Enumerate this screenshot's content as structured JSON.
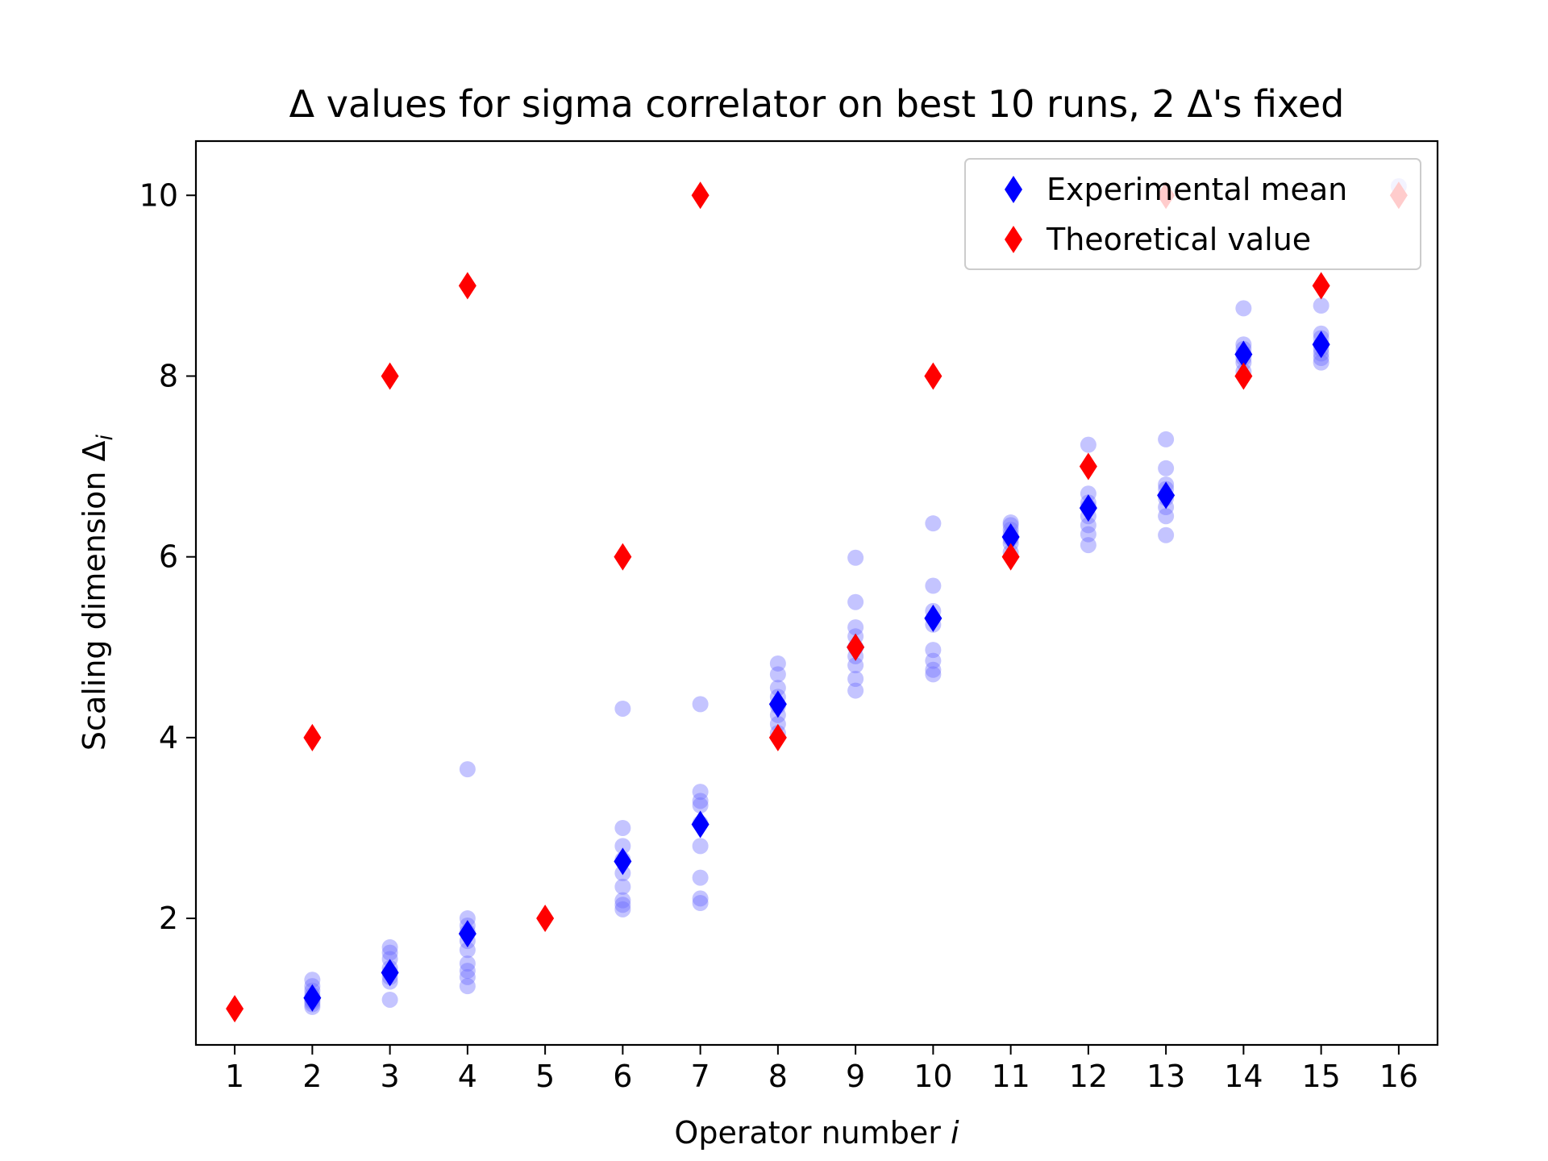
{
  "chart_data": {
    "type": "scatter",
    "title": "Δ values for sigma correlator on best 10 runs, 2 Δ's fixed",
    "xlabel": "Operator number",
    "xlabel_var": "i",
    "ylabel": "Scaling dimension Δ",
    "ylabel_sub": "i",
    "xlim": [
      0.5,
      16.5
    ],
    "ylim": [
      0.6,
      10.6
    ],
    "x_ticks": [
      1,
      2,
      3,
      4,
      5,
      6,
      7,
      8,
      9,
      10,
      11,
      12,
      13,
      14,
      15,
      16
    ],
    "y_ticks": [
      2,
      4,
      6,
      8,
      10
    ],
    "grid": false,
    "legend_placement": "top-right",
    "colors": {
      "experimental_mean": "#0000ff",
      "theoretical_value": "#ff0000",
      "runs": "#6b6bff"
    },
    "runs": [
      {
        "x": 2,
        "values": [
          1.02,
          1.05,
          1.08,
          1.1,
          1.12,
          1.15,
          1.2,
          1.25,
          1.32
        ]
      },
      {
        "x": 3,
        "values": [
          1.1,
          1.3,
          1.35,
          1.4,
          1.45,
          1.55,
          1.62,
          1.68
        ]
      },
      {
        "x": 4,
        "values": [
          1.25,
          1.35,
          1.42,
          1.5,
          1.65,
          1.75,
          1.85,
          1.92,
          2.0,
          3.65
        ]
      },
      {
        "x": 6,
        "values": [
          2.1,
          2.15,
          2.2,
          2.35,
          2.5,
          2.65,
          2.8,
          3.0,
          4.32
        ]
      },
      {
        "x": 7,
        "values": [
          2.17,
          2.22,
          2.45,
          2.8,
          3.05,
          3.25,
          3.3,
          3.4,
          4.37
        ]
      },
      {
        "x": 8,
        "values": [
          4.05,
          4.15,
          4.25,
          4.35,
          4.45,
          4.55,
          4.7,
          4.82
        ]
      },
      {
        "x": 9,
        "values": [
          4.52,
          4.65,
          4.8,
          4.9,
          5.0,
          5.12,
          5.22,
          5.5,
          5.99
        ]
      },
      {
        "x": 10,
        "values": [
          4.7,
          4.75,
          4.85,
          4.97,
          5.25,
          5.4,
          5.68,
          6.37
        ]
      },
      {
        "x": 11,
        "values": [
          6.05,
          6.15,
          6.2,
          6.25,
          6.3,
          6.35,
          6.38
        ]
      },
      {
        "x": 12,
        "values": [
          6.13,
          6.25,
          6.35,
          6.45,
          6.55,
          6.6,
          6.7,
          7.24
        ]
      },
      {
        "x": 13,
        "values": [
          6.24,
          6.45,
          6.55,
          6.65,
          6.75,
          6.8,
          6.98,
          7.3
        ]
      },
      {
        "x": 14,
        "values": [
          8.05,
          8.15,
          8.2,
          8.25,
          8.3,
          8.35,
          8.75
        ]
      },
      {
        "x": 15,
        "values": [
          8.15,
          8.2,
          8.25,
          8.3,
          8.35,
          8.42,
          8.47,
          8.78
        ]
      },
      {
        "x": 16,
        "values": [
          10.1
        ]
      }
    ],
    "series": [
      {
        "name": "Experimental mean",
        "x": [
          2,
          3,
          4,
          6,
          7,
          8,
          9,
          10,
          11,
          12,
          13,
          14,
          15
        ],
        "values": [
          1.12,
          1.4,
          1.83,
          2.63,
          3.04,
          4.37,
          5.0,
          5.32,
          6.22,
          6.54,
          6.68,
          8.24,
          8.35
        ]
      },
      {
        "name": "Theoretical value",
        "x": [
          1,
          2,
          3,
          4,
          5,
          6,
          7,
          8,
          9,
          10,
          11,
          12,
          13,
          14,
          15,
          16
        ],
        "values": [
          1,
          4,
          8,
          9,
          2,
          6,
          10,
          4,
          5,
          8,
          6,
          7,
          10,
          8,
          9,
          10
        ]
      }
    ]
  }
}
